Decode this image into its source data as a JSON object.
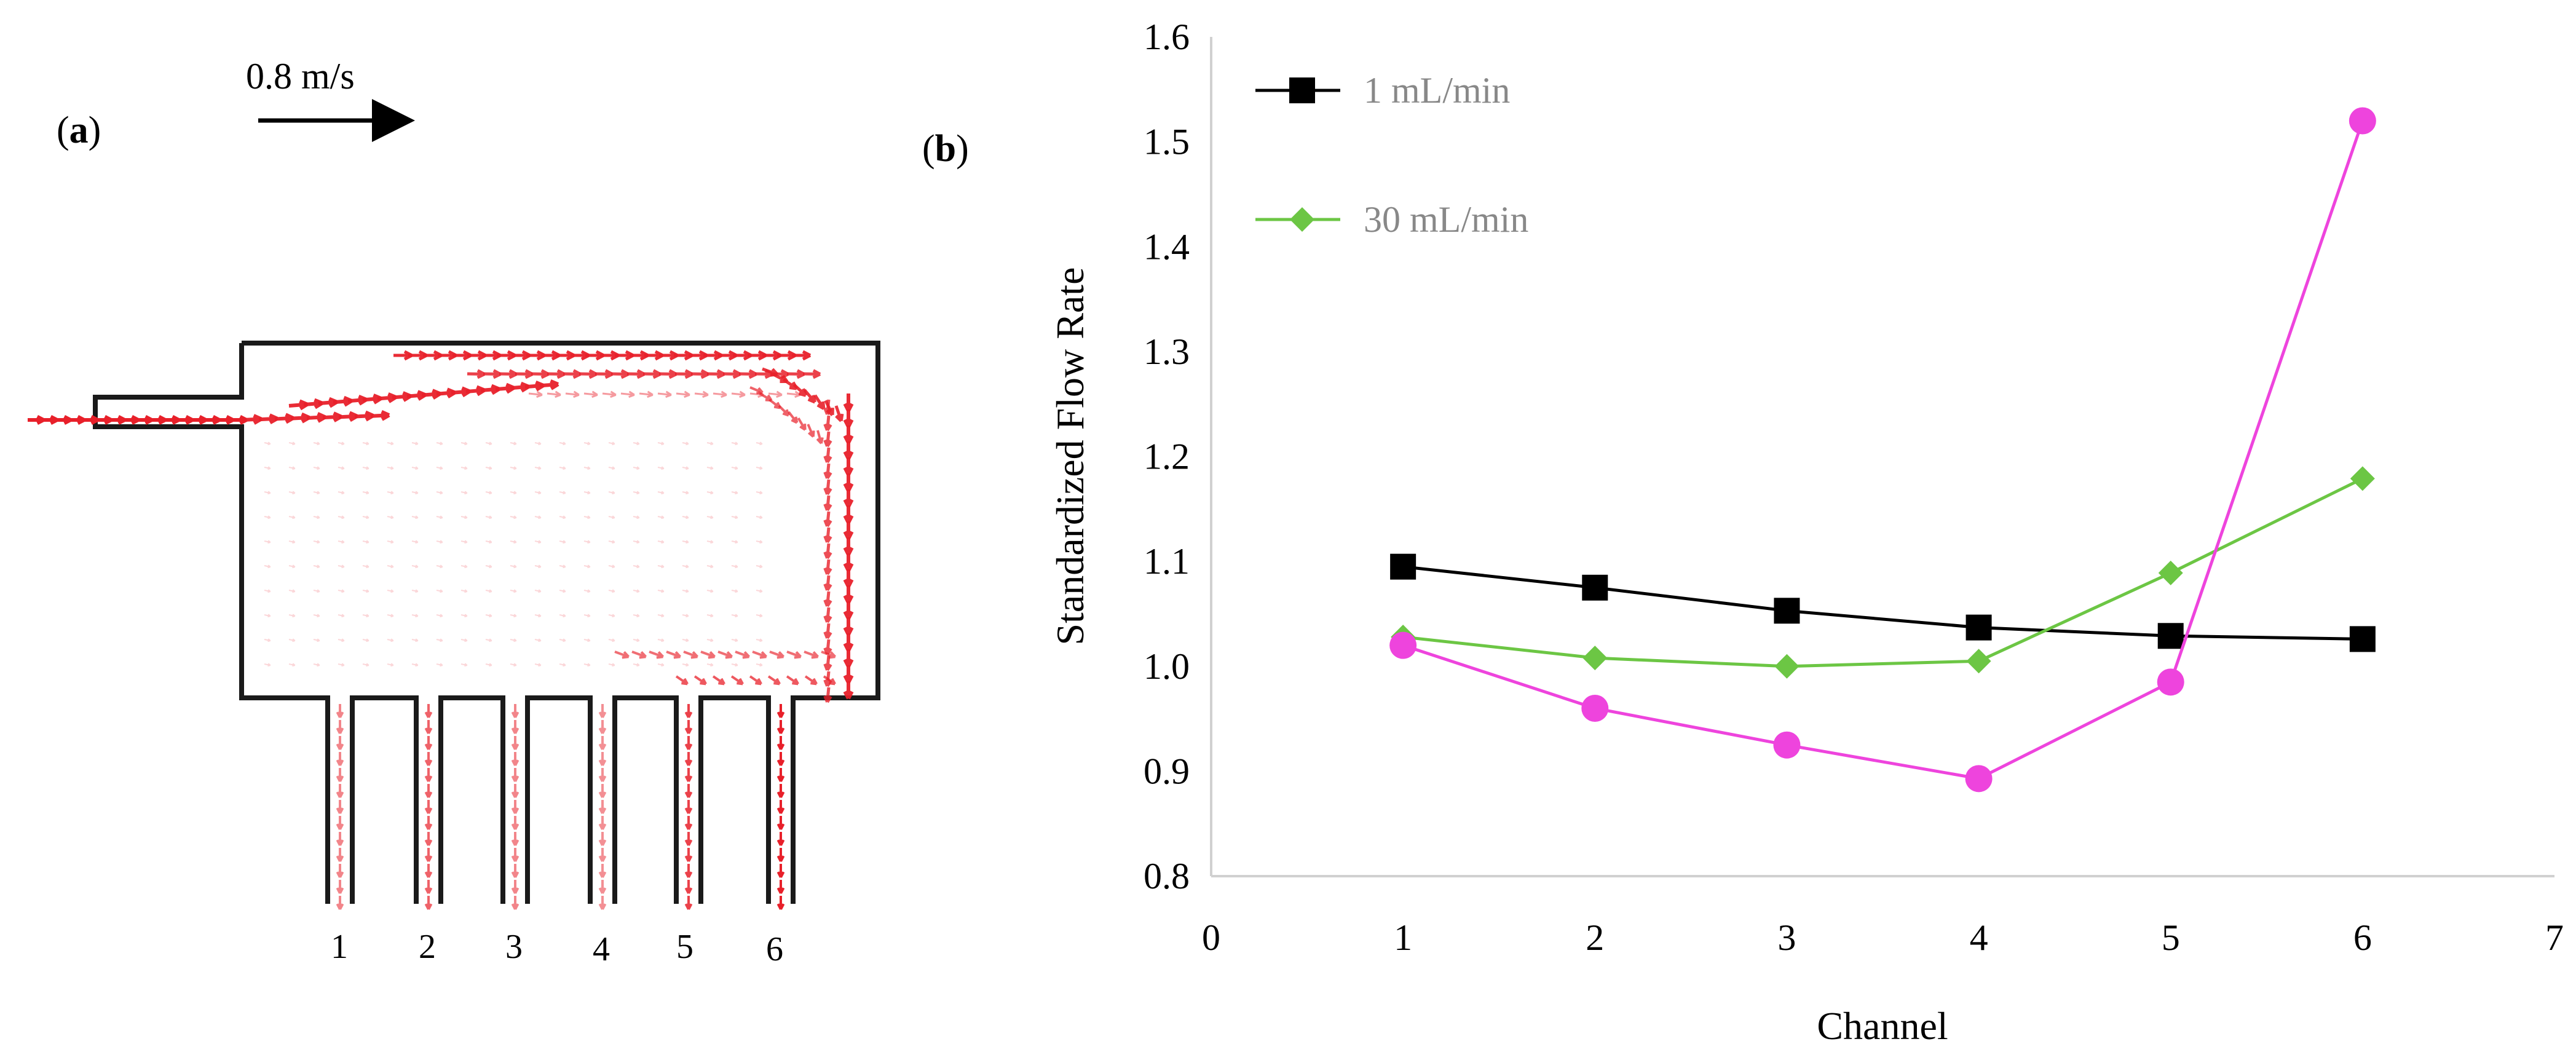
{
  "panel_a": {
    "label": "(a)",
    "label_letter": "a",
    "scale_label": "0.8 m/s",
    "channel_labels": [
      "1",
      "2",
      "3",
      "4",
      "5",
      "6"
    ],
    "vector_color": "#e8202a"
  },
  "panel_b": {
    "label": "(b)",
    "label_letter": "b"
  },
  "chart_data": {
    "type": "line",
    "title": "",
    "xlabel": "Channel",
    "ylabel": "Standardized Flow Rate",
    "xlim": [
      0,
      7
    ],
    "ylim": [
      0.8,
      1.6
    ],
    "xticks": [
      "0",
      "1",
      "2",
      "3",
      "4",
      "5",
      "6",
      "7"
    ],
    "yticks": [
      "0.8",
      "0.9",
      "1.0",
      "1.1",
      "1.2",
      "1.3",
      "1.4",
      "1.5",
      "1.6"
    ],
    "grid": false,
    "legend_placement": "top-left",
    "x": [
      1,
      2,
      3,
      4,
      5,
      6
    ],
    "series": [
      {
        "name": "1 mL/min",
        "color": "#000000",
        "marker": "square",
        "values": [
          1.095,
          1.075,
          1.053,
          1.037,
          1.029,
          1.026
        ]
      },
      {
        "name": "30 mL/min",
        "color": "#6cc644",
        "marker": "diamond",
        "values": [
          1.028,
          1.008,
          1.0,
          1.005,
          1.089,
          1.179
        ]
      },
      {
        "name": "",
        "color": "#ee44dd",
        "marker": "circle",
        "values": [
          1.02,
          0.96,
          0.925,
          0.893,
          0.985,
          1.52
        ]
      }
    ]
  }
}
